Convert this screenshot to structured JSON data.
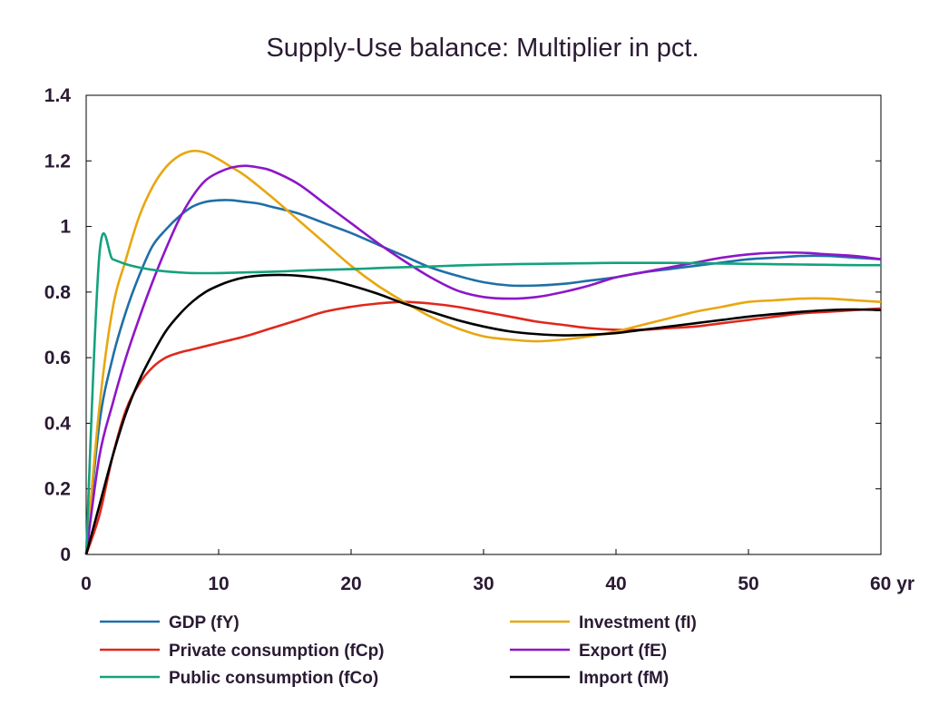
{
  "chart_data": {
    "type": "line",
    "title": "Supply-Use balance: Multiplier in pct.",
    "xlabel": "",
    "ylabel": "",
    "x_unit_label": "yr",
    "xlim": [
      0,
      60
    ],
    "ylim": [
      0,
      1.4
    ],
    "x_ticks": [
      0,
      10,
      20,
      30,
      40,
      50,
      60
    ],
    "x_tick_labels": [
      "0",
      "10",
      "20",
      "30",
      "40",
      "50",
      "60 yr"
    ],
    "y_ticks": [
      0,
      0.2,
      0.4,
      0.6,
      0.8,
      1,
      1.2,
      1.4
    ],
    "y_tick_labels": [
      "0",
      "0.2",
      "0.4",
      "0.6",
      "0.8",
      "1",
      "1.2",
      "1.4"
    ],
    "grid": false,
    "legend_position": "bottom",
    "series": [
      {
        "name": "GDP (fY)",
        "color": "#1f6fa8",
        "x": [
          0,
          1,
          2,
          3,
          4,
          5,
          6,
          7,
          8,
          9,
          10,
          11,
          12,
          13,
          14,
          16,
          18,
          20,
          22,
          24,
          26,
          28,
          30,
          32,
          34,
          36,
          38,
          40,
          42,
          44,
          46,
          48,
          50,
          52,
          54,
          56,
          58,
          60
        ],
        "values": [
          0,
          0.4,
          0.6,
          0.74,
          0.85,
          0.94,
          0.99,
          1.03,
          1.06,
          1.075,
          1.08,
          1.08,
          1.075,
          1.07,
          1.06,
          1.04,
          1.01,
          0.98,
          0.945,
          0.91,
          0.875,
          0.85,
          0.83,
          0.82,
          0.82,
          0.825,
          0.835,
          0.845,
          0.86,
          0.87,
          0.88,
          0.89,
          0.9,
          0.905,
          0.91,
          0.91,
          0.905,
          0.9
        ]
      },
      {
        "name": "Private consumption (fCp)",
        "color": "#e0281c",
        "x": [
          0,
          1,
          2,
          3,
          4,
          5,
          6,
          7,
          8,
          10,
          12,
          14,
          16,
          18,
          20,
          22,
          24,
          26,
          28,
          30,
          32,
          34,
          36,
          38,
          40,
          42,
          44,
          46,
          48,
          50,
          52,
          54,
          56,
          58,
          60
        ],
        "values": [
          0,
          0.12,
          0.3,
          0.44,
          0.52,
          0.57,
          0.6,
          0.615,
          0.625,
          0.645,
          0.665,
          0.69,
          0.715,
          0.74,
          0.755,
          0.765,
          0.77,
          0.765,
          0.755,
          0.74,
          0.725,
          0.71,
          0.7,
          0.69,
          0.685,
          0.685,
          0.69,
          0.695,
          0.705,
          0.715,
          0.725,
          0.735,
          0.74,
          0.745,
          0.75
        ]
      },
      {
        "name": "Public consumption (fCo)",
        "color": "#13a27d",
        "x": [
          0,
          1,
          2,
          3,
          4,
          5,
          6,
          7,
          8,
          10,
          12,
          14,
          16,
          18,
          20,
          22,
          24,
          26,
          28,
          30,
          32,
          34,
          36,
          38,
          40,
          42,
          44,
          46,
          48,
          50,
          52,
          54,
          56,
          58,
          60
        ],
        "values": [
          0,
          0.915,
          0.9,
          0.885,
          0.875,
          0.868,
          0.863,
          0.86,
          0.858,
          0.858,
          0.86,
          0.862,
          0.865,
          0.868,
          0.87,
          0.873,
          0.876,
          0.878,
          0.881,
          0.883,
          0.885,
          0.886,
          0.887,
          0.888,
          0.889,
          0.889,
          0.889,
          0.888,
          0.887,
          0.886,
          0.885,
          0.884,
          0.883,
          0.882,
          0.882
        ]
      },
      {
        "name": "Investment (fI)",
        "color": "#e8a70f",
        "x": [
          0,
          1,
          2,
          3,
          4,
          5,
          6,
          7,
          8,
          9,
          10,
          11,
          12,
          14,
          16,
          18,
          20,
          22,
          24,
          26,
          28,
          30,
          32,
          34,
          36,
          38,
          40,
          42,
          44,
          46,
          48,
          50,
          52,
          54,
          56,
          58,
          60
        ],
        "values": [
          0,
          0.45,
          0.75,
          0.9,
          1.03,
          1.12,
          1.18,
          1.215,
          1.23,
          1.225,
          1.205,
          1.18,
          1.155,
          1.09,
          1.02,
          0.95,
          0.88,
          0.82,
          0.77,
          0.725,
          0.69,
          0.665,
          0.655,
          0.65,
          0.655,
          0.665,
          0.68,
          0.7,
          0.72,
          0.74,
          0.755,
          0.77,
          0.775,
          0.78,
          0.78,
          0.775,
          0.77
        ]
      },
      {
        "name": "Export (fE)",
        "color": "#8e16c9",
        "x": [
          0,
          1,
          2,
          3,
          4,
          5,
          6,
          7,
          8,
          9,
          10,
          11,
          12,
          13,
          14,
          16,
          18,
          20,
          22,
          24,
          26,
          28,
          30,
          32,
          34,
          36,
          38,
          40,
          42,
          44,
          46,
          48,
          50,
          52,
          54,
          56,
          58,
          60
        ],
        "values": [
          0,
          0.3,
          0.46,
          0.6,
          0.72,
          0.83,
          0.93,
          1.02,
          1.09,
          1.14,
          1.165,
          1.18,
          1.185,
          1.18,
          1.17,
          1.13,
          1.07,
          1.01,
          0.95,
          0.895,
          0.845,
          0.805,
          0.785,
          0.78,
          0.785,
          0.8,
          0.82,
          0.845,
          0.86,
          0.875,
          0.89,
          0.905,
          0.915,
          0.92,
          0.92,
          0.915,
          0.91,
          0.9
        ]
      },
      {
        "name": "Import (fM)",
        "color": "#000000",
        "x": [
          0,
          1,
          2,
          3,
          4,
          5,
          6,
          7,
          8,
          9,
          10,
          11,
          12,
          13,
          14,
          15,
          16,
          18,
          20,
          22,
          24,
          26,
          28,
          30,
          32,
          34,
          36,
          38,
          40,
          42,
          44,
          46,
          48,
          50,
          52,
          54,
          56,
          58,
          60
        ],
        "values": [
          0,
          0.15,
          0.3,
          0.43,
          0.53,
          0.61,
          0.68,
          0.73,
          0.77,
          0.8,
          0.82,
          0.835,
          0.845,
          0.85,
          0.852,
          0.852,
          0.85,
          0.84,
          0.82,
          0.795,
          0.765,
          0.74,
          0.715,
          0.695,
          0.68,
          0.672,
          0.668,
          0.67,
          0.675,
          0.685,
          0.695,
          0.705,
          0.715,
          0.725,
          0.733,
          0.74,
          0.745,
          0.747,
          0.745
        ]
      }
    ]
  }
}
